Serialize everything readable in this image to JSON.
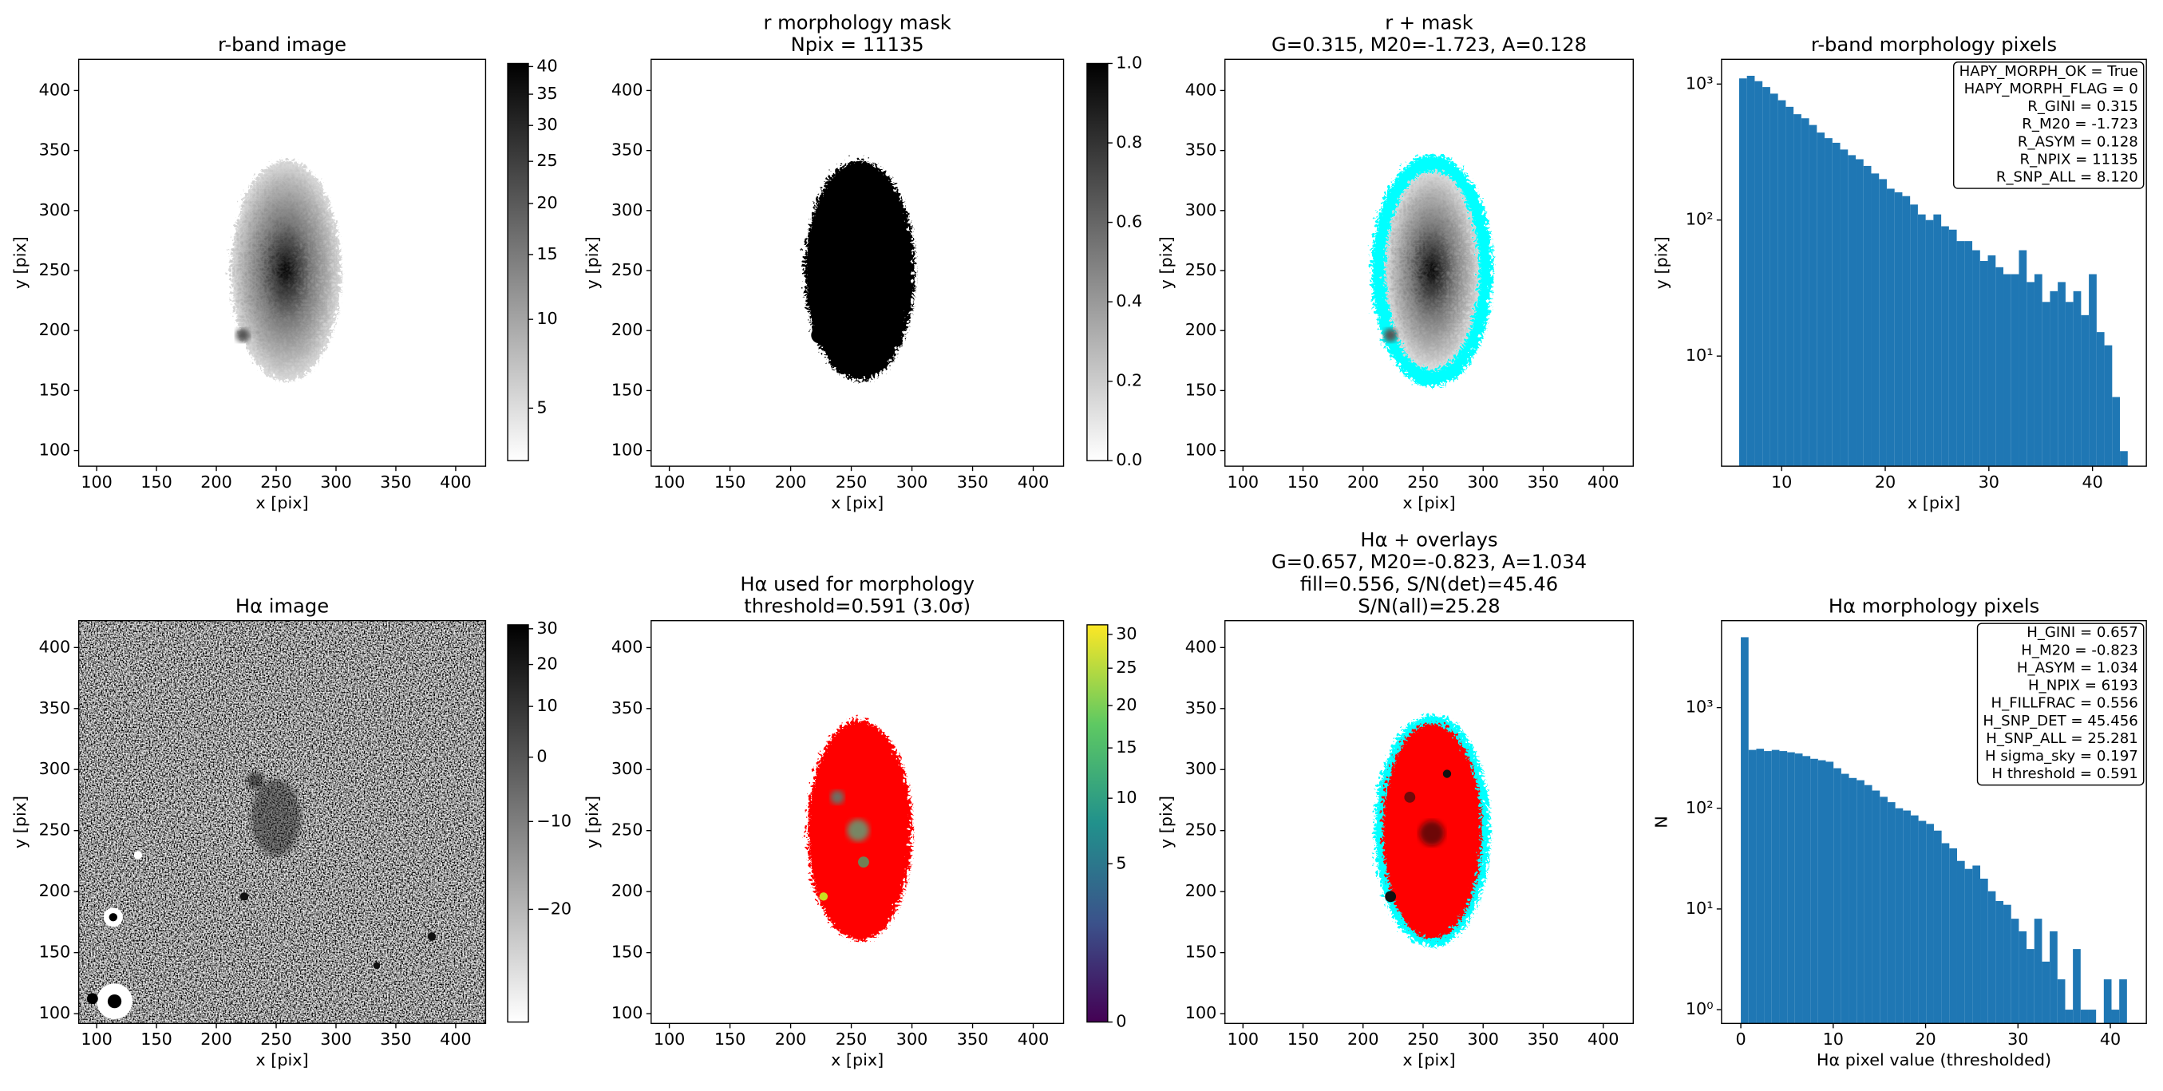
{
  "chart_data": [
    {
      "type": "image",
      "title": [
        "r-band image"
      ],
      "xlabel": "x [pix]",
      "ylabel": "y [pix]",
      "xlim": [
        85,
        425
      ],
      "ylim": [
        87,
        426
      ],
      "xticks": [
        100,
        150,
        200,
        250,
        300,
        350,
        400
      ],
      "yticks": [
        100,
        150,
        200,
        250,
        300,
        350,
        400
      ],
      "colorbar": {
        "colormap": "gray_r",
        "scale": "log",
        "clim": [
          2.8,
          40.6
        ],
        "ticks": [
          5,
          10,
          15,
          20,
          25,
          30,
          35,
          40
        ]
      }
    },
    {
      "type": "image",
      "title": [
        "r morphology mask",
        "Npix = 11135"
      ],
      "xlabel": "x [pix]",
      "ylabel": "y [pix]",
      "xlim": [
        85,
        425
      ],
      "ylim": [
        87,
        426
      ],
      "xticks": [
        100,
        150,
        200,
        250,
        300,
        350,
        400
      ],
      "yticks": [
        100,
        150,
        200,
        250,
        300,
        350,
        400
      ],
      "colorbar": {
        "colormap": "gray_r",
        "scale": "linear",
        "clim": [
          0,
          1
        ],
        "ticks": [
          {
            "value": 0,
            "label": "0.0"
          },
          0.2,
          0.4,
          0.6,
          0.8,
          {
            "value": 1,
            "label": "1.0"
          }
        ]
      }
    },
    {
      "type": "image",
      "title": [
        "r + mask",
        "G=0.315, M20=-1.723, A=0.128"
      ],
      "xlabel": "x [pix]",
      "ylabel": "y [pix]",
      "xlim": [
        85,
        425
      ],
      "ylim": [
        87,
        426
      ],
      "xticks": [
        100,
        150,
        200,
        250,
        300,
        350,
        400
      ],
      "yticks": [
        100,
        150,
        200,
        250,
        300,
        350,
        400
      ]
    },
    {
      "type": "histogram",
      "title": [
        "r-band morphology pixels"
      ],
      "xlabel": "x [pix]",
      "ylabel": "y [pix]",
      "color": "#1f77b4",
      "ylog": true,
      "xlim": [
        4.2,
        45.2
      ],
      "ylim": [
        1.55,
        1520
      ],
      "xticks": [
        10,
        20,
        30,
        40
      ],
      "yticks": [
        {
          "value": 10,
          "label": "10¹"
        },
        {
          "value": 100,
          "label": "10²"
        },
        {
          "value": 1000,
          "label": "10³"
        }
      ],
      "bins": [
        5.9,
        6.65,
        7.4,
        8.15,
        8.9,
        9.65,
        10.4,
        11.15,
        11.9,
        12.65,
        13.4,
        14.15,
        14.9,
        15.65,
        16.4,
        17.15,
        17.9,
        18.65,
        19.4,
        20.15,
        20.9,
        21.65,
        22.4,
        23.15,
        23.9,
        24.65,
        25.4,
        26.15,
        26.9,
        27.65,
        28.4,
        29.15,
        29.9,
        30.65,
        31.4,
        32.15,
        32.9,
        33.65,
        34.4,
        35.15,
        35.9,
        36.65,
        37.4,
        38.15,
        38.9,
        39.65,
        40.4,
        41.15,
        41.9,
        42.65,
        43.4
      ],
      "values": [
        1100,
        1150,
        1050,
        950,
        850,
        760,
        680,
        600,
        560,
        500,
        440,
        400,
        370,
        330,
        300,
        280,
        250,
        220,
        200,
        170,
        160,
        150,
        130,
        110,
        100,
        110,
        90,
        85,
        70,
        70,
        60,
        50,
        55,
        45,
        40,
        40,
        60,
        35,
        40,
        25,
        30,
        35,
        25,
        30,
        20,
        40,
        15,
        12,
        5,
        2
      ],
      "annotation": [
        "HAPY_MORPH_OK = True",
        "HAPY_MORPH_FLAG = 0",
        "R_GINI = 0.315",
        "R_M20 = -1.723",
        "R_ASYM = 0.128",
        "R_NPIX = 11135",
        "R_SNP_ALL = 8.120"
      ]
    },
    {
      "type": "image",
      "title": [
        "Hα image"
      ],
      "xlabel": "x [pix]",
      "ylabel": "y [pix]",
      "xlim": [
        85,
        425
      ],
      "ylim": [
        92,
        422
      ],
      "xticks": [
        100,
        150,
        200,
        250,
        300,
        350,
        400
      ],
      "yticks": [
        100,
        150,
        200,
        250,
        300,
        350,
        400
      ],
      "colorbar": {
        "colormap": "gray_r",
        "scale": "log",
        "clim": [
          -28.5,
          31.2
        ],
        "ticks": [
          {
            "value": -20,
            "label": "−20"
          },
          {
            "value": -10,
            "label": "−10"
          },
          0,
          10,
          20,
          30
        ]
      }
    },
    {
      "type": "image",
      "title": [
        "Hα used for morphology",
        "threshold=0.591 (3.0σ)"
      ],
      "xlabel": "x [pix]",
      "ylabel": "y [pix]",
      "xlim": [
        85,
        425
      ],
      "ylim": [
        92,
        422
      ],
      "xticks": [
        100,
        150,
        200,
        250,
        300,
        350,
        400
      ],
      "yticks": [
        100,
        150,
        200,
        250,
        300,
        350,
        400
      ],
      "colorbar": {
        "colormap": "viridis",
        "scale": "sqrt",
        "clim": [
          0,
          31.5
        ],
        "ticks": [
          0,
          5,
          10,
          15,
          20,
          25,
          30
        ]
      }
    },
    {
      "type": "image",
      "title": [
        "Hα + overlays",
        "G=0.657, M20=-0.823, A=1.034",
        "fill=0.556, S/N(det)=45.46",
        "S/N(all)=25.28"
      ],
      "xlabel": "x [pix]",
      "ylabel": "y [pix]",
      "xlim": [
        85,
        425
      ],
      "ylim": [
        92,
        422
      ],
      "xticks": [
        100,
        150,
        200,
        250,
        300,
        350,
        400
      ],
      "yticks": [
        100,
        150,
        200,
        250,
        300,
        350,
        400
      ]
    },
    {
      "type": "histogram",
      "title": [
        "Hα morphology pixels"
      ],
      "xlabel": "Hα pixel value (thresholded)",
      "ylabel": "N",
      "color": "#1f77b4",
      "ylog": true,
      "xlim": [
        -2.09,
        43.9
      ],
      "ylim": [
        0.73,
        7300
      ],
      "xticks": [
        0,
        10,
        20,
        30,
        40
      ],
      "yticks": [
        {
          "value": 1,
          "label": "10⁰"
        },
        {
          "value": 10,
          "label": "10¹"
        },
        {
          "value": 100,
          "label": "10²"
        },
        {
          "value": 1000,
          "label": "10³"
        }
      ],
      "bins": [
        0,
        0.836,
        1.672,
        2.508,
        3.344,
        4.18,
        5.016,
        5.852,
        6.688,
        7.524,
        8.36,
        9.196,
        10.032,
        10.868,
        11.704,
        12.54,
        13.376,
        14.212,
        15.048,
        15.884,
        16.72,
        17.556,
        18.392,
        19.228,
        20.064,
        20.9,
        21.736,
        22.572,
        23.408,
        24.244,
        25.08,
        25.916,
        26.752,
        27.588,
        28.424,
        29.26,
        30.096,
        30.932,
        31.768,
        32.604,
        33.44,
        34.276,
        35.112,
        35.948,
        36.784,
        37.62,
        38.456,
        39.292,
        40.128,
        40.964,
        41.8
      ],
      "values": [
        5000,
        380,
        390,
        370,
        380,
        370,
        360,
        350,
        330,
        310,
        300,
        290,
        250,
        220,
        200,
        190,
        170,
        150,
        130,
        115,
        100,
        95,
        85,
        75,
        70,
        60,
        45,
        40,
        30,
        25,
        27,
        20,
        15,
        12,
        11,
        8,
        6,
        4,
        8,
        3,
        6,
        2,
        1,
        4,
        1,
        1,
        0,
        2,
        1,
        2
      ],
      "annotation": [
        "H_GINI = 0.657",
        "H_M20 = -0.823",
        "H_ASYM = 1.034",
        "H_NPIX = 6193",
        "H_FILLFRAC = 0.556",
        "H_SNP_DET = 45.456",
        "H_SNP_ALL = 25.281",
        "H sigma_sky = 0.197",
        "H threshold = 0.591"
      ]
    }
  ]
}
